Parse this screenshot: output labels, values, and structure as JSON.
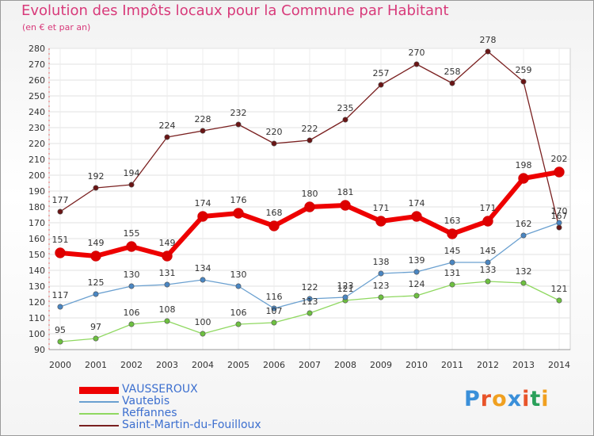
{
  "header": {
    "title": "Evolution des Impôts locaux pour la Commune par Habitant",
    "subtitle": "(en € et par an)"
  },
  "brand": {
    "logo_letters": [
      "P",
      "r",
      "o",
      "x",
      "i",
      "t",
      "i"
    ],
    "logo_colors": [
      "#3a8fd9",
      "#e8542a",
      "#f0a020",
      "#3a8fd9",
      "#e8542a",
      "#2aa05a",
      "#f0a020"
    ]
  },
  "chart_data": {
    "type": "line",
    "title": "Evolution des Impôts locaux pour la Commune par Habitant",
    "subtitle": "(en € et par an)",
    "xlabel": "",
    "ylabel": "",
    "x": [
      "2000",
      "2001",
      "2002",
      "2003",
      "2004",
      "2005",
      "2006",
      "2007",
      "2008",
      "2009",
      "2010",
      "2011",
      "2012",
      "2013",
      "2014"
    ],
    "ylim": [
      90,
      280
    ],
    "yticks": [
      90,
      100,
      110,
      120,
      130,
      140,
      150,
      160,
      170,
      180,
      190,
      200,
      210,
      220,
      230,
      240,
      250,
      260,
      270,
      280
    ],
    "grid": true,
    "legend_position": "bottom-left",
    "series": [
      {
        "name": "VAUSSEROUX",
        "color": "#ee0000",
        "values": [
          151,
          149,
          155,
          149,
          174,
          176,
          168,
          180,
          181,
          171,
          174,
          163,
          171,
          198,
          202
        ]
      },
      {
        "name": "Vautebis",
        "color": "#6aa0d0",
        "values": [
          117,
          125,
          130,
          131,
          134,
          130,
          116,
          122,
          123,
          138,
          139,
          145,
          145,
          162,
          170
        ]
      },
      {
        "name": "Reffannes",
        "color": "#8fd860",
        "values": [
          95,
          97,
          106,
          108,
          100,
          106,
          107,
          113,
          121,
          123,
          124,
          131,
          133,
          132,
          121
        ]
      },
      {
        "name": "Saint-Martin-du-Fouilloux",
        "color": "#7a2020",
        "values": [
          177,
          192,
          194,
          224,
          228,
          232,
          220,
          222,
          235,
          257,
          270,
          258,
          278,
          259,
          167
        ]
      }
    ]
  }
}
